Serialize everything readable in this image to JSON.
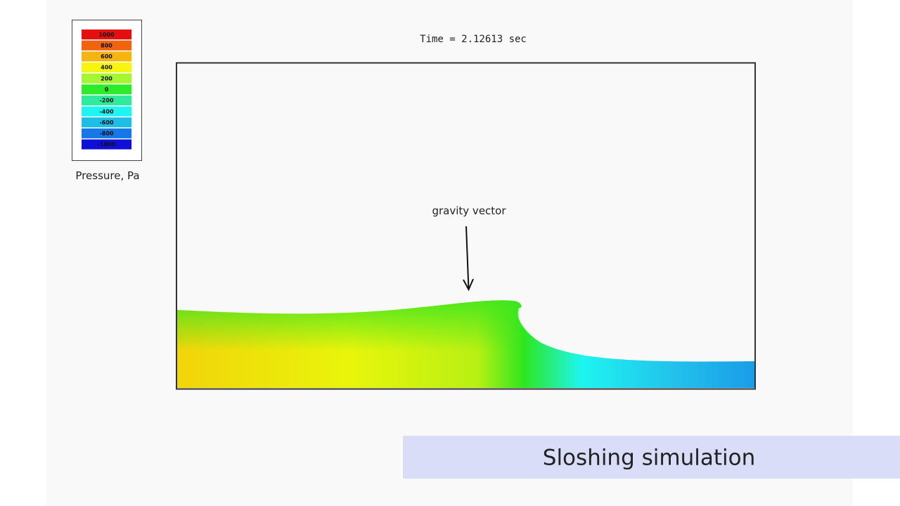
{
  "time_label": "Time = 2.12613 sec",
  "legend": {
    "title": "Pressure, Pa",
    "items": [
      {
        "label": "1000",
        "color": "#e60f0f"
      },
      {
        "label": "800",
        "color": "#f0640f"
      },
      {
        "label": "600",
        "color": "#f5b40f"
      },
      {
        "label": "400",
        "color": "#f5f50f"
      },
      {
        "label": "200",
        "color": "#a5f532"
      },
      {
        "label": "0",
        "color": "#2deb28"
      },
      {
        "label": "-200",
        "color": "#2deb9b"
      },
      {
        "label": "-400",
        "color": "#1ef5f0"
      },
      {
        "label": "-600",
        "color": "#1ebee6"
      },
      {
        "label": "-800",
        "color": "#1478e6"
      },
      {
        "label": "-1000",
        "color": "#0f0fd7"
      }
    ]
  },
  "annotation": "gravity vector",
  "caption": "Sloshing simulation"
}
